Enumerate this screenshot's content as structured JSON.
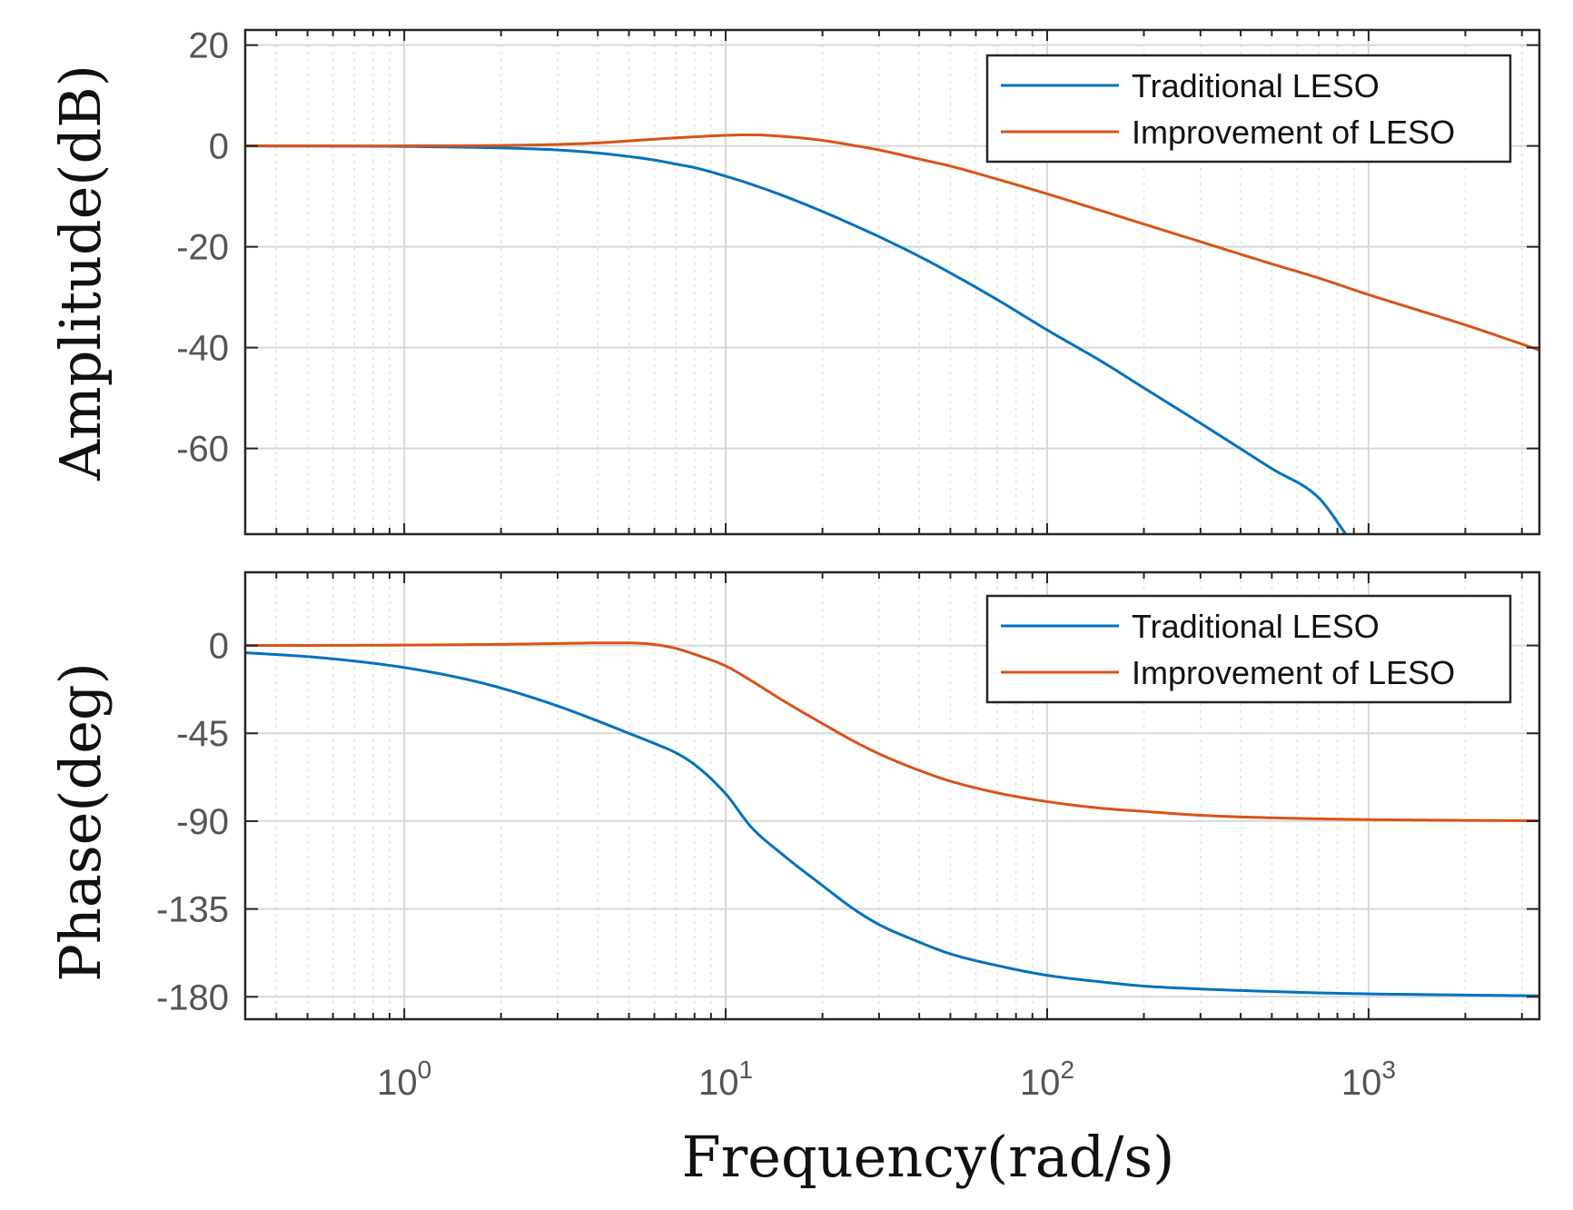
{
  "chart_data": [
    {
      "type": "line",
      "panel": "magnitude",
      "ylabel": "Amplitude(dB)",
      "xlabel": "",
      "xscale": "log",
      "xlim": [
        0.32,
        3400
      ],
      "ylim": [
        -77,
        23
      ],
      "yticks": [
        20,
        0,
        -20,
        -40,
        -60
      ],
      "ytick_labels": [
        "20",
        "0",
        "-20",
        "-40",
        "-60"
      ],
      "grid": true,
      "legend_position": "top-right",
      "series": [
        {
          "name": "Traditional LESO",
          "color": "#0072BD",
          "x": [
            0.32,
            0.5,
            1,
            2,
            3,
            4,
            5,
            6,
            7,
            8,
            10,
            12,
            15,
            20,
            25,
            30,
            40,
            50,
            70,
            100,
            150,
            200,
            300,
            500,
            700,
            850
          ],
          "y": [
            0,
            -0.02,
            -0.1,
            -0.4,
            -0.8,
            -1.4,
            -2.1,
            -2.8,
            -3.6,
            -4.3,
            -6.0,
            -7.6,
            -9.8,
            -13.0,
            -15.7,
            -18.0,
            -21.9,
            -25.2,
            -30.5,
            -36.5,
            -43.0,
            -48.0,
            -55.0,
            -64.0,
            -69.8,
            -77.0
          ]
        },
        {
          "name": "Improvement of LESO",
          "color": "#D95319",
          "x": [
            0.32,
            1,
            2,
            3,
            4,
            5,
            7,
            10,
            12,
            15,
            20,
            25,
            30,
            40,
            50,
            70,
            100,
            150,
            200,
            300,
            500,
            700,
            1000,
            1500,
            2000,
            3400
          ],
          "y": [
            0,
            0.02,
            0.1,
            0.3,
            0.6,
            1.0,
            1.6,
            2.1,
            2.2,
            1.9,
            1.1,
            0.1,
            -0.8,
            -2.6,
            -4.0,
            -6.6,
            -9.5,
            -13.0,
            -15.5,
            -19.0,
            -23.4,
            -26.2,
            -29.5,
            -33.0,
            -35.5,
            -40.5
          ]
        }
      ]
    },
    {
      "type": "line",
      "panel": "phase",
      "ylabel": "Phase(deg)",
      "xlabel": "Frequency(rad/s)",
      "xscale": "log",
      "xlim": [
        0.32,
        3400
      ],
      "ylim": [
        -191.5,
        37.5
      ],
      "yticks": [
        0,
        -45,
        -90,
        -135,
        -180
      ],
      "ytick_labels": [
        "0",
        "-45",
        "-90",
        "-135",
        "-180"
      ],
      "xticks": [
        1,
        10,
        100,
        1000
      ],
      "xtick_labels": [
        {
          "base": "10",
          "exp": "0"
        },
        {
          "base": "10",
          "exp": "1"
        },
        {
          "base": "10",
          "exp": "2"
        },
        {
          "base": "10",
          "exp": "3"
        }
      ],
      "grid": true,
      "legend_position": "top-right",
      "series": [
        {
          "name": "Traditional LESO",
          "color": "#0072BD",
          "x": [
            0.32,
            0.5,
            0.7,
            1,
            1.5,
            2,
            3,
            4,
            5,
            6,
            7,
            8,
            10,
            12,
            15,
            20,
            25,
            30,
            40,
            50,
            70,
            100,
            150,
            200,
            300,
            500,
            700,
            1000,
            2000,
            3400
          ],
          "y": [
            -3.7,
            -5.7,
            -8.0,
            -11.3,
            -16.7,
            -21.8,
            -31.0,
            -38.7,
            -45.0,
            -50.2,
            -55.0,
            -61.0,
            -76.0,
            -93.0,
            -107.0,
            -123.0,
            -135.0,
            -143.0,
            -152.0,
            -158.0,
            -164.0,
            -169.0,
            -172.5,
            -174.5,
            -176.0,
            -177.3,
            -178.0,
            -178.5,
            -179.1,
            -179.5
          ]
        },
        {
          "name": "Improvement of LESO",
          "color": "#D95319",
          "x": [
            0.32,
            1,
            2,
            3,
            4,
            5,
            6,
            7,
            8,
            10,
            12,
            15,
            20,
            25,
            30,
            40,
            50,
            70,
            100,
            150,
            200,
            300,
            500,
            1000,
            2000,
            3400
          ],
          "y": [
            0,
            0.2,
            0.6,
            1.0,
            1.3,
            1.3,
            0.5,
            -1.5,
            -4.5,
            -10.5,
            -18.0,
            -28.0,
            -40.0,
            -49.0,
            -55.5,
            -64.0,
            -69.5,
            -75.5,
            -80.0,
            -83.5,
            -85.0,
            -87.0,
            -88.3,
            -89.2,
            -89.6,
            -89.8
          ]
        }
      ]
    }
  ]
}
